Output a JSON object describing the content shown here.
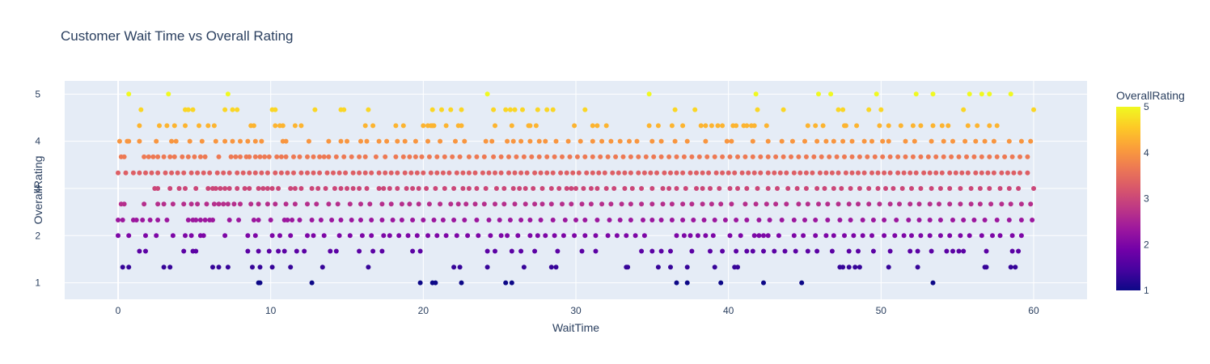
{
  "chart_data": {
    "type": "scatter",
    "title": "Customer Wait Time vs Overall Rating",
    "xlabel": "WaitTime",
    "ylabel": "OverallRating",
    "xlim": [
      -3.5,
      63.5
    ],
    "ylim": [
      0.65,
      5.28
    ],
    "xticks": [
      0,
      10,
      20,
      30,
      40,
      50,
      60
    ],
    "yticks": [
      1,
      2,
      3,
      4,
      5
    ],
    "grid": true,
    "colorbar": {
      "title": "OverallRating",
      "range": [
        1,
        5
      ],
      "ticks": [
        1,
        2,
        3,
        4,
        5
      ],
      "colorscale": [
        "#0d0887",
        "#46039f",
        "#7201a8",
        "#9c179e",
        "#bd3786",
        "#d8576b",
        "#ed7953",
        "#fb9f3a",
        "#fdca26",
        "#f0f921"
      ]
    },
    "plot_bgcolor": "#e5ecf6",
    "points": {
      "y_levels": [
        5,
        4.67,
        4.33,
        4,
        3.67,
        3.33,
        3,
        2.67,
        2.33,
        2,
        1.67,
        1.33,
        1
      ],
      "x_by_level": [
        [
          0.7,
          3.3,
          7.2,
          24.2,
          34.8,
          41.8,
          45.9,
          46.7,
          49.7,
          52.3,
          53.4,
          55.8,
          56.6,
          57.1,
          58.5
        ],
        [
          1.5,
          4.4,
          4.6,
          4.9,
          7.0,
          7.5,
          7.8,
          10.1,
          10.3,
          12.9,
          14.6,
          14.8,
          16.4,
          20.6,
          21.2,
          21.8,
          22.5,
          24.6,
          25.4,
          25.7,
          26.0,
          26.5,
          27.5,
          28.1,
          28.5,
          30.6,
          36.5,
          37.8,
          41.9,
          43.6,
          47.2,
          47.5,
          49.2,
          50.0,
          55.4,
          60.0
        ],
        [
          1.4,
          2.7,
          3.2,
          3.7,
          4.4,
          5.3,
          5.9,
          6.3,
          8.7,
          8.9,
          10.3,
          10.6,
          10.8,
          11.6,
          12.0,
          16.2,
          16.7,
          18.2,
          18.7,
          20.0,
          20.3,
          20.5,
          20.6,
          20.7,
          21.5,
          22.3,
          22.5,
          24.7,
          25.8,
          26.9,
          27.0,
          27.4,
          29.9,
          31.1,
          31.4,
          32.0,
          34.8,
          35.4,
          36.3,
          37.0,
          38.2,
          38.5,
          38.9,
          39.3,
          39.6,
          40.3,
          40.5,
          41.0,
          41.2,
          41.5,
          41.7,
          42.5,
          45.2,
          45.7,
          46.2,
          47.6,
          47.7,
          48.4,
          49.9,
          50.5,
          51.3,
          52.1,
          52.6,
          53.4,
          54.0,
          54.4,
          55.7,
          56.3,
          57.1,
          57.6
        ],
        [
          0.1,
          0.6,
          0.7,
          1.4,
          2.5,
          3.5,
          3.8,
          4.7,
          5.5,
          6.4,
          7.0,
          7.5,
          8.0,
          8.5,
          9.0,
          9.4,
          10.8,
          11.0,
          12.5,
          13.8,
          14.6,
          15.0,
          15.9,
          16.3,
          17.1,
          17.6,
          18.3,
          18.8,
          19.5,
          20.3,
          21.1,
          22.1,
          22.7,
          24.1,
          24.5,
          25.5,
          25.9,
          26.4,
          27.0,
          27.6,
          28.0,
          28.7,
          29.5,
          30.3,
          31.1,
          31.7,
          32.3,
          32.9,
          33.5,
          34.0,
          35.0,
          35.6,
          36.5,
          37.3,
          38.5,
          39.9,
          40.2,
          41.6,
          42.6,
          43.5,
          44.2,
          45.0,
          45.8,
          46.4,
          46.9,
          47.5,
          48.1,
          48.9,
          49.4,
          50.1,
          50.5,
          51.6,
          52.2,
          53.3,
          54.1,
          54.7,
          55.5,
          56.2,
          56.8,
          57.4,
          58.4,
          59.2,
          59.8
        ],
        [
          0.2,
          0.4,
          1.7,
          2.0,
          2.3,
          2.6,
          3.0,
          3.4,
          3.7,
          4.2,
          4.6,
          5.0,
          5.4,
          5.7,
          6.6,
          7.4,
          7.7,
          8.0,
          8.4,
          8.6,
          9.0,
          9.3,
          9.6,
          9.9,
          10.4,
          10.7,
          11.0,
          11.5,
          11.9,
          12.4,
          12.8,
          13.2,
          13.5,
          13.8,
          14.3,
          14.8,
          15.3,
          15.8,
          16.2,
          16.9,
          17.5,
          18.2,
          18.7,
          19.1,
          19.5,
          19.9,
          20.4,
          20.9,
          21.4,
          21.9,
          22.4,
          23.0,
          23.5,
          24.0,
          24.6,
          25.1,
          25.6,
          26.1,
          26.6,
          27.1,
          27.6,
          28.1,
          28.6,
          29.1,
          29.6,
          30.1,
          30.6,
          31.1,
          31.6,
          32.1,
          32.6,
          33.1,
          33.6,
          34.1,
          34.6,
          35.1,
          35.6,
          36.1,
          36.6,
          37.1,
          37.6,
          38.1,
          38.6,
          39.1,
          39.6,
          40.1,
          40.6,
          41.1,
          41.6,
          42.1,
          42.6,
          43.1,
          43.6,
          44.1,
          44.6,
          45.1,
          45.6,
          46.1,
          46.6,
          47.1,
          47.6,
          48.1,
          48.6,
          49.1,
          49.6,
          50.1,
          50.6,
          51.1,
          51.6,
          52.1,
          52.6,
          53.1,
          53.6,
          54.1,
          54.6,
          55.1,
          55.6,
          56.1,
          56.6,
          57.1,
          57.6,
          58.1,
          58.6,
          59.1,
          59.6
        ],
        [
          0.0,
          0.5,
          1.0,
          1.4,
          1.8,
          2.2,
          2.6,
          3.1,
          3.5,
          3.9,
          4.3,
          4.8,
          5.2,
          5.6,
          6.0,
          6.5,
          6.9,
          7.3,
          7.8,
          8.2,
          8.6,
          9.0,
          9.4,
          9.8,
          10.3,
          10.7,
          11.1,
          11.5,
          12.0,
          12.4,
          12.8,
          13.2,
          13.7,
          14.1,
          14.5,
          14.9,
          15.4,
          15.8,
          16.2,
          16.6,
          17.1,
          17.5,
          17.9,
          18.3,
          18.8,
          19.2,
          19.6,
          20.0,
          20.5,
          20.9,
          21.3,
          21.7,
          22.2,
          22.6,
          23.0,
          23.4,
          23.9,
          24.3,
          24.7,
          25.1,
          25.6,
          26.0,
          26.4,
          26.8,
          27.3,
          27.7,
          28.1,
          28.5,
          29.0,
          29.4,
          29.8,
          30.2,
          30.7,
          31.1,
          31.5,
          31.9,
          32.4,
          32.8,
          33.2,
          33.6,
          34.1,
          34.5,
          34.9,
          35.3,
          35.8,
          36.2,
          36.6,
          37.0,
          37.5,
          37.9,
          38.3,
          38.7,
          39.2,
          39.6,
          40.0,
          40.4,
          40.9,
          41.3,
          41.7,
          42.1,
          42.6,
          43.0,
          43.4,
          43.8,
          44.3,
          44.7,
          45.1,
          45.5,
          46.0,
          46.4,
          46.8,
          47.2,
          47.7,
          48.1,
          48.5,
          48.9,
          49.4,
          49.8,
          50.2,
          50.6,
          51.1,
          51.5,
          51.9,
          52.3,
          52.8,
          53.2,
          53.6,
          54.0,
          54.5,
          54.9,
          55.3,
          55.7,
          56.2,
          56.6,
          57.0,
          57.4,
          57.9,
          58.3,
          58.7,
          59.1,
          59.6
        ],
        [
          2.4,
          2.6,
          3.4,
          4.0,
          4.4,
          5.1,
          5.9,
          6.2,
          6.4,
          6.7,
          7.0,
          7.3,
          7.8,
          8.3,
          8.6,
          9.2,
          9.5,
          9.8,
          10.1,
          10.5,
          11.3,
          11.6,
          12.0,
          12.7,
          13.1,
          13.6,
          14.2,
          14.6,
          15.0,
          15.4,
          15.8,
          16.3,
          17.1,
          17.4,
          17.8,
          18.3,
          18.9,
          19.3,
          19.7,
          20.2,
          20.8,
          21.4,
          22.0,
          22.6,
          23.0,
          23.5,
          24.1,
          24.8,
          25.3,
          25.9,
          26.3,
          26.7,
          27.2,
          27.8,
          28.4,
          28.9,
          29.4,
          29.7,
          30.0,
          30.5,
          31.0,
          31.4,
          32.0,
          32.5,
          33.2,
          33.7,
          34.3,
          35.0,
          35.7,
          36.1,
          36.6,
          37.2,
          37.9,
          38.3,
          38.8,
          39.4,
          40.1,
          40.6,
          41.2,
          41.9,
          42.6,
          43.2,
          43.9,
          44.5,
          45.1,
          45.8,
          46.3,
          46.9,
          47.4,
          48.0,
          48.6,
          49.2,
          49.8,
          50.3,
          50.8,
          51.4,
          52.0,
          52.6,
          53.3,
          53.9,
          54.5,
          55.2,
          55.9,
          56.5,
          57.1,
          57.8,
          58.4,
          59.0,
          60.0
        ],
        [
          0.2,
          0.4,
          1.7,
          2.6,
          3.0,
          3.6,
          4.3,
          4.8,
          5.2,
          5.8,
          6.3,
          6.6,
          6.9,
          7.2,
          7.6,
          8.0,
          8.7,
          9.2,
          9.8,
          10.3,
          11.0,
          11.6,
          12.4,
          13.0,
          13.8,
          14.4,
          15.2,
          15.9,
          16.5,
          17.3,
          17.9,
          18.6,
          19.1,
          19.7,
          20.4,
          21.1,
          21.8,
          22.3,
          22.8,
          23.4,
          24.0,
          24.7,
          25.3,
          26.0,
          26.7,
          27.3,
          27.8,
          28.4,
          29.1,
          29.7,
          30.4,
          31.0,
          31.7,
          32.3,
          33.0,
          33.6,
          34.3,
          35.0,
          35.7,
          36.3,
          37.0,
          37.6,
          38.3,
          38.9,
          39.5,
          40.2,
          41.1,
          41.8,
          42.5,
          43.1,
          43.8,
          44.6,
          45.2,
          45.9,
          46.5,
          47.2,
          47.9,
          48.5,
          49.2,
          49.9,
          50.6,
          51.2,
          51.9,
          52.5,
          53.2,
          53.8,
          54.5,
          55.2,
          55.9,
          56.5,
          57.2,
          57.9,
          58.5,
          59.2,
          59.8
        ],
        [
          0.0,
          0.3,
          1.0,
          1.2,
          1.6,
          2.1,
          2.6,
          3.2,
          4.6,
          4.9,
          5.1,
          5.4,
          5.7,
          6.0,
          6.2,
          7.3,
          7.9,
          8.9,
          9.2,
          10.0,
          10.9,
          11.1,
          11.4,
          11.9,
          12.7,
          13.3,
          14.0,
          14.6,
          15.3,
          15.9,
          16.6,
          17.3,
          18.0,
          18.6,
          19.3,
          20.0,
          20.7,
          21.3,
          22.0,
          22.7,
          23.5,
          24.3,
          25.0,
          25.7,
          26.4,
          27.0,
          27.7,
          28.5,
          29.3,
          30.0,
          30.6,
          31.4,
          32.2,
          32.9,
          33.6,
          34.4,
          35.0,
          35.6,
          36.3,
          37.0,
          37.7,
          38.4,
          39.1,
          39.8,
          40.5,
          41.2,
          42.0,
          42.7,
          43.5,
          44.3,
          45.0,
          45.7,
          46.5,
          47.3,
          48.0,
          48.8,
          49.5,
          50.2,
          51.0,
          51.8,
          52.5,
          53.2,
          53.9,
          54.7,
          55.4,
          56.1,
          56.8,
          57.6,
          58.4,
          59.2,
          59.9
        ],
        [
          0.0,
          0.7,
          1.8,
          2.5,
          3.6,
          4.4,
          4.8,
          5.4,
          5.6,
          7.0,
          8.5,
          9.0,
          10.1,
          10.6,
          11.3,
          12.4,
          12.8,
          13.5,
          14.5,
          15.2,
          16.0,
          16.6,
          17.4,
          17.8,
          18.4,
          19.0,
          19.6,
          20.3,
          20.9,
          21.5,
          22.2,
          22.9,
          23.6,
          24.4,
          25.1,
          25.5,
          26.2,
          27.0,
          27.5,
          28.0,
          28.6,
          29.2,
          29.9,
          30.6,
          31.3,
          32.1,
          32.7,
          33.3,
          33.9,
          34.5,
          36.6,
          37.1,
          37.5,
          38.0,
          38.5,
          39.0,
          40.1,
          40.8,
          41.7,
          42.0,
          42.3,
          42.6,
          43.3,
          44.3,
          44.9,
          45.7,
          46.4,
          46.9,
          47.6,
          48.2,
          48.8,
          49.4,
          50.2,
          50.9,
          51.5,
          52.0,
          52.6,
          53.2,
          53.9,
          54.5,
          55.2,
          55.8,
          56.6,
          57.3,
          57.8,
          58.6,
          59.2
        ],
        [
          1.4,
          1.8,
          4.3,
          4.9,
          5.1,
          8.5,
          9.2,
          9.9,
          10.5,
          10.9,
          11.7,
          12.2,
          13.9,
          14.3,
          15.8,
          16.7,
          17.3,
          19.3,
          19.8,
          24.2,
          24.7,
          25.8,
          26.4,
          27.3,
          28.8,
          30.4,
          31.3,
          34.3,
          35.0,
          35.6,
          36.2,
          37.6,
          38.8,
          39.6,
          40.5,
          41.2,
          41.6,
          42.3,
          43.0,
          43.7,
          44.4,
          45.2,
          45.8,
          46.8,
          47.9,
          48.5,
          49.5,
          50.6,
          51.9,
          52.4,
          53.3,
          54.3,
          54.7,
          55.1,
          55.4,
          56.9,
          58.6,
          59.0
        ],
        [
          0.3,
          0.7,
          3.0,
          3.4,
          6.2,
          6.6,
          7.2,
          8.8,
          9.3,
          10.1,
          11.3,
          13.4,
          16.4,
          22.0,
          22.4,
          24.2,
          26.6,
          28.4,
          28.7,
          33.3,
          33.4,
          35.4,
          36.2,
          37.3,
          39.1,
          40.4,
          40.6,
          47.3,
          47.5,
          47.9,
          48.3,
          48.6,
          50.5,
          52.4,
          56.8,
          56.9,
          58.5,
          58.8
        ],
        [
          9.2,
          9.3,
          12.7,
          19.8,
          20.6,
          20.8,
          22.5,
          25.4,
          25.8,
          36.6,
          37.3,
          39.5,
          42.3,
          44.8,
          53.4
        ]
      ]
    }
  }
}
